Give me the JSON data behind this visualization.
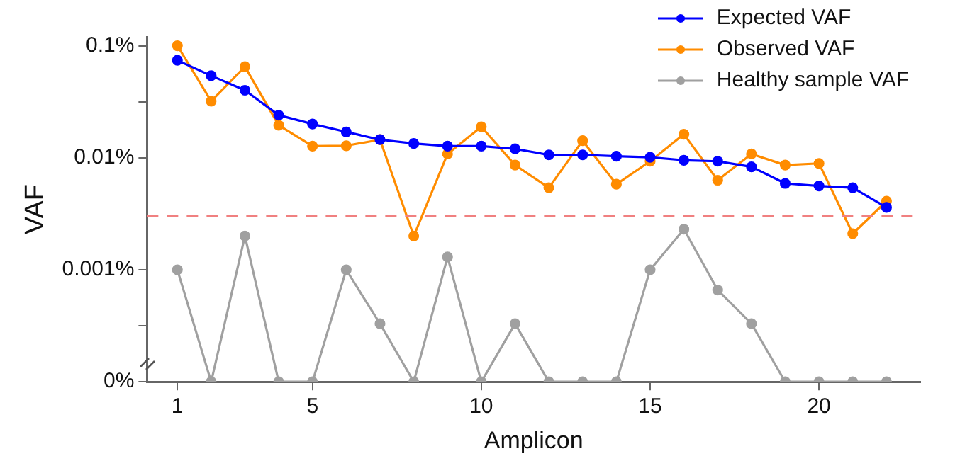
{
  "chart_data": {
    "type": "line",
    "xlabel": "Amplicon",
    "ylabel": "VAF",
    "log": "y",
    "legend": "top right",
    "marker": "circle",
    "grid": false,
    "x": [
      1,
      2,
      3,
      4,
      5,
      6,
      7,
      8,
      9,
      10,
      11,
      12,
      13,
      14,
      15,
      16,
      17,
      18,
      19,
      20,
      21,
      22
    ],
    "xlim": [
      0.1,
      23
    ],
    "xticks": [
      1,
      5,
      10,
      15,
      20
    ],
    "ylim": [
      0.0001,
      0.12
    ],
    "yticks": [
      {
        "value": 0.0001,
        "label": "0%"
      },
      {
        "value": 0.000316,
        "label": null
      },
      {
        "value": 0.001,
        "label": "0.001%"
      },
      {
        "value": 0.01,
        "label": "0.01%"
      },
      {
        "value": 0.0316,
        "label": null
      },
      {
        "value": 0.1,
        "label": "0.1%"
      }
    ],
    "series": [
      {
        "name": "Expected VAF",
        "color": "#0000ff",
        "values": [
          0.074,
          0.054,
          0.04,
          0.024,
          0.02,
          0.017,
          0.0145,
          0.0134,
          0.0127,
          0.0127,
          0.012,
          0.0106,
          0.0106,
          0.0103,
          0.0101,
          0.0095,
          0.0093,
          0.0083,
          0.0059,
          0.0056,
          0.0054,
          0.0036
        ]
      },
      {
        "name": "Observed VAF",
        "color": "#ff8c00",
        "values": [
          0.1,
          0.032,
          0.065,
          0.0195,
          0.0127,
          0.0128,
          0.0145,
          0.002,
          0.0108,
          0.0189,
          0.0086,
          0.0054,
          0.0142,
          0.0058,
          0.0093,
          0.0162,
          0.0063,
          0.0108,
          0.0086,
          0.0089,
          0.0021,
          0.0041
        ]
      },
      {
        "name": "Healthy sample VAF",
        "color": "#a0a0a0",
        "values": [
          0.001,
          0.0001,
          0.002,
          0.0001,
          0.0001,
          0.001,
          0.00033,
          0.0001,
          0.0013,
          0.0001,
          0.00033,
          0.0001,
          0.0001,
          0.0001,
          0.001,
          0.0023,
          0.00066,
          0.00033,
          0.0001,
          0.0001,
          0.0001,
          0.0001
        ]
      }
    ],
    "ref_lines": [
      {
        "axis": "y",
        "value": 0.003,
        "color": "#f08080",
        "line_style": "dashed"
      }
    ]
  }
}
